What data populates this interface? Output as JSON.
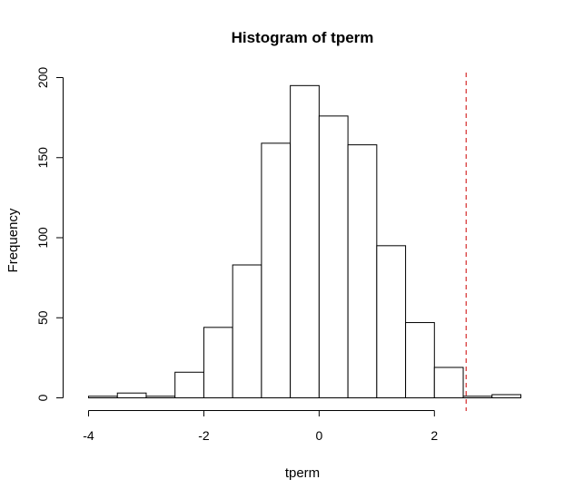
{
  "chart_data": {
    "type": "bar",
    "title": "Histogram of tperm",
    "xlabel": "tperm",
    "ylabel": "Frequency",
    "bin_edges": [
      -4.0,
      -3.5,
      -3.0,
      -2.5,
      -2.0,
      -1.5,
      -1.0,
      -0.5,
      0.0,
      0.5,
      1.0,
      1.5,
      2.0,
      2.5,
      3.0,
      3.5
    ],
    "values": [
      1,
      3,
      1,
      16,
      44,
      83,
      159,
      195,
      176,
      158,
      95,
      47,
      19,
      1,
      2
    ],
    "x_ticks": [
      -4,
      -2,
      0,
      2
    ],
    "x_tick_labels": [
      "-4",
      "-2",
      "0",
      "2"
    ],
    "y_ticks": [
      0,
      50,
      100,
      150,
      200
    ],
    "y_tick_labels": [
      "0",
      "50",
      "100",
      "150",
      "200"
    ],
    "xlim": [
      -4,
      3.5
    ],
    "ylim": [
      0,
      200
    ],
    "grid": false,
    "reference_line": {
      "x": 2.55,
      "style": "dashed",
      "color": "#cc0000"
    }
  }
}
